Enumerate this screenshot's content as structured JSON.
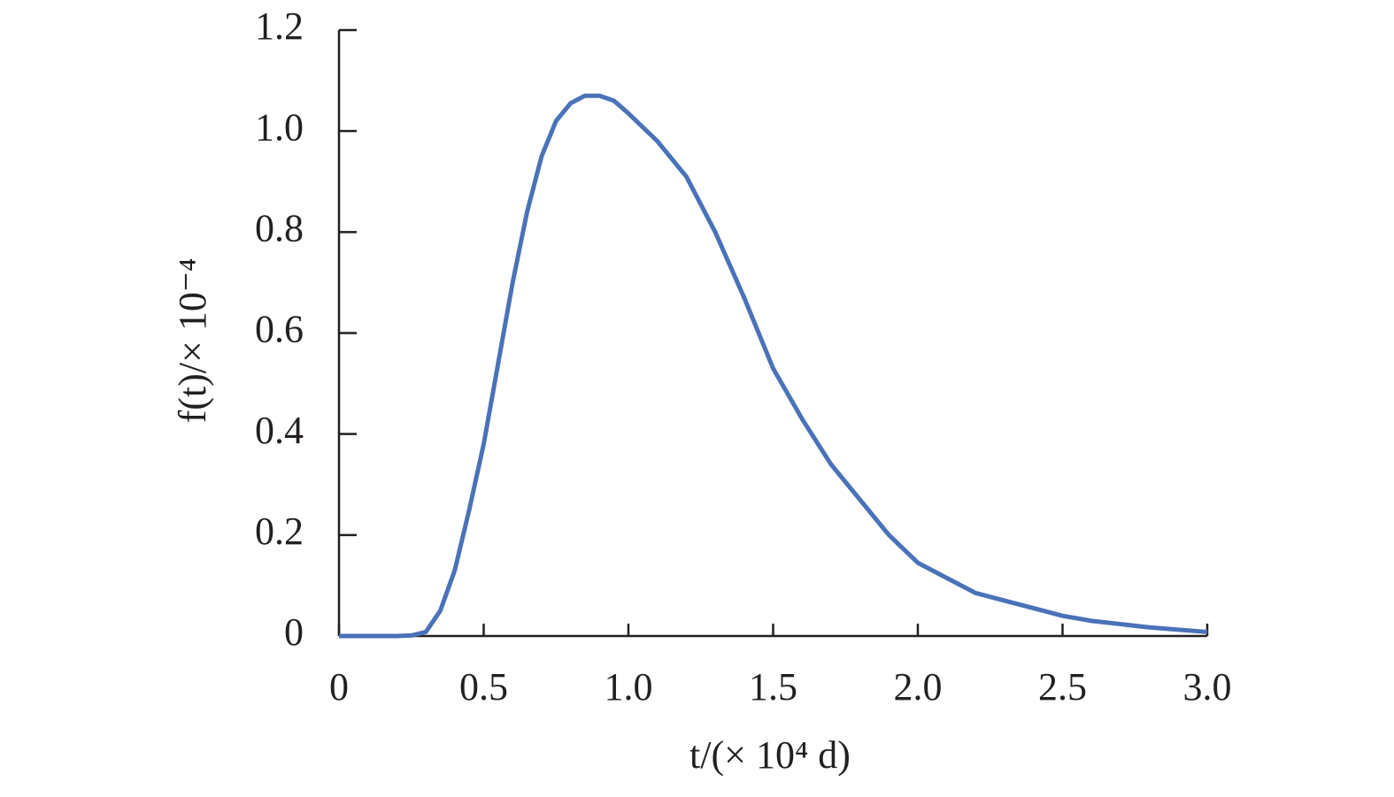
{
  "chart_data": {
    "type": "line",
    "x_label": "t/(× 10⁴ d)",
    "y_label": "f(t)/× 10⁻⁴",
    "x": [
      0,
      0.1,
      0.2,
      0.25,
      0.3,
      0.35,
      0.4,
      0.45,
      0.5,
      0.55,
      0.6,
      0.65,
      0.7,
      0.75,
      0.8,
      0.85,
      0.9,
      0.95,
      1.0,
      1.1,
      1.2,
      1.3,
      1.4,
      1.5,
      1.6,
      1.7,
      1.8,
      1.9,
      2.0,
      2.2,
      2.4,
      2.5,
      2.6,
      2.8,
      3.0
    ],
    "series": [
      {
        "color": "#4a72b8",
        "values": [
          0,
          0,
          0,
          0.001,
          0.008,
          0.05,
          0.13,
          0.25,
          0.38,
          0.54,
          0.7,
          0.84,
          0.95,
          1.02,
          1.055,
          1.07,
          1.07,
          1.06,
          1.035,
          0.98,
          0.91,
          0.8,
          0.67,
          0.53,
          0.43,
          0.34,
          0.27,
          0.2,
          0.145,
          0.085,
          0.055,
          0.04,
          0.03,
          0.017,
          0.008
        ]
      }
    ],
    "xlim": [
      0,
      3
    ],
    "ylim": [
      0,
      1.2
    ],
    "xticks": [
      0,
      0.5,
      {
        "value": 1,
        "label": "1.0"
      },
      1.5,
      {
        "value": 2,
        "label": "2.0"
      },
      2.5,
      {
        "value": 3,
        "label": "3.0"
      }
    ],
    "yticks": [
      0,
      0.2,
      0.4,
      0.6,
      0.8,
      {
        "value": 1,
        "label": "1.0"
      },
      1.2
    ],
    "grid": false
  }
}
